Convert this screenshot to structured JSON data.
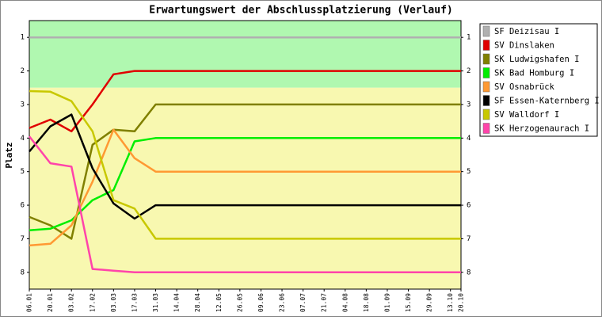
{
  "chart_data": {
    "type": "line",
    "title": "Erwartungswert der Abschlussplatzierung (Verlauf)",
    "y_label": "Platz",
    "categories": [
      "06.01",
      "20.01",
      "03.02",
      "17.02",
      "03.03",
      "17.03",
      "31.03",
      "14.04",
      "28.04",
      "12.05",
      "26.05",
      "09.06",
      "23.06",
      "07.07",
      "21.07",
      "04.08",
      "18.08",
      "01.09",
      "15.09",
      "29.09",
      "13.10",
      "20.10"
    ],
    "ylim": [
      8.5,
      0.5
    ],
    "yticks": [
      1,
      2,
      3,
      4,
      5,
      6,
      7,
      8
    ],
    "bands": [
      {
        "from": 0.5,
        "to": 2.5,
        "color": "#b0f8b0"
      },
      {
        "from": 2.5,
        "to": 8.5,
        "color": "#f8f8b0"
      }
    ],
    "legend": "right",
    "series": [
      {
        "name": "SF Deizisau I",
        "color": "#b0b0b0",
        "values": [
          1,
          1,
          1,
          1,
          1,
          1,
          1,
          1,
          1,
          1,
          1,
          1,
          1,
          1,
          1,
          1,
          1,
          1,
          1,
          1,
          1,
          1
        ]
      },
      {
        "name": "SV Dinslaken",
        "color": "#e00000",
        "values": [
          3.7,
          3.45,
          3.8,
          3.0,
          2.1,
          2.0,
          2.0,
          2,
          2,
          2,
          2,
          2,
          2,
          2,
          2,
          2,
          2,
          2,
          2,
          2,
          2,
          2
        ]
      },
      {
        "name": "SK Ludwigshafen I",
        "color": "#808000",
        "values": [
          6.35,
          6.6,
          7.0,
          4.2,
          3.75,
          3.8,
          3.0,
          3,
          3,
          3,
          3,
          3,
          3,
          3,
          3,
          3,
          3,
          3,
          3,
          3,
          3,
          3
        ]
      },
      {
        "name": "SK Bad Homburg I",
        "color": "#00ee00",
        "values": [
          6.75,
          6.7,
          6.45,
          5.85,
          5.55,
          4.1,
          4.0,
          4,
          4,
          4,
          4,
          4,
          4,
          4,
          4,
          4,
          4,
          4,
          4,
          4,
          4,
          4
        ]
      },
      {
        "name": "SV Osnabrück",
        "color": "#ff9933",
        "values": [
          7.2,
          7.15,
          6.6,
          5.3,
          3.75,
          4.6,
          5.0,
          5,
          5,
          5,
          5,
          5,
          5,
          5,
          5,
          5,
          5,
          5,
          5,
          5,
          5,
          5
        ]
      },
      {
        "name": "SF Essen-Katernberg I",
        "color": "#000000",
        "values": [
          4.4,
          3.65,
          3.3,
          4.9,
          5.95,
          6.4,
          6.0,
          6,
          6,
          6,
          6,
          6,
          6,
          6,
          6,
          6,
          6,
          6,
          6,
          6,
          6,
          6
        ]
      },
      {
        "name": "SV Walldorf I",
        "color": "#c8c800",
        "values": [
          2.6,
          2.62,
          2.9,
          3.8,
          5.85,
          6.1,
          7.0,
          7,
          7,
          7,
          7,
          7,
          7,
          7,
          7,
          7,
          7,
          7,
          7,
          7,
          7,
          7
        ]
      },
      {
        "name": "SK Herzogenaurach I",
        "color": "#ff44aa",
        "values": [
          3.95,
          4.75,
          4.85,
          7.9,
          7.95,
          8.0,
          8.0,
          8,
          8,
          8,
          8,
          8,
          8,
          8,
          8,
          8,
          8,
          8,
          8,
          8,
          8,
          8
        ]
      }
    ]
  }
}
